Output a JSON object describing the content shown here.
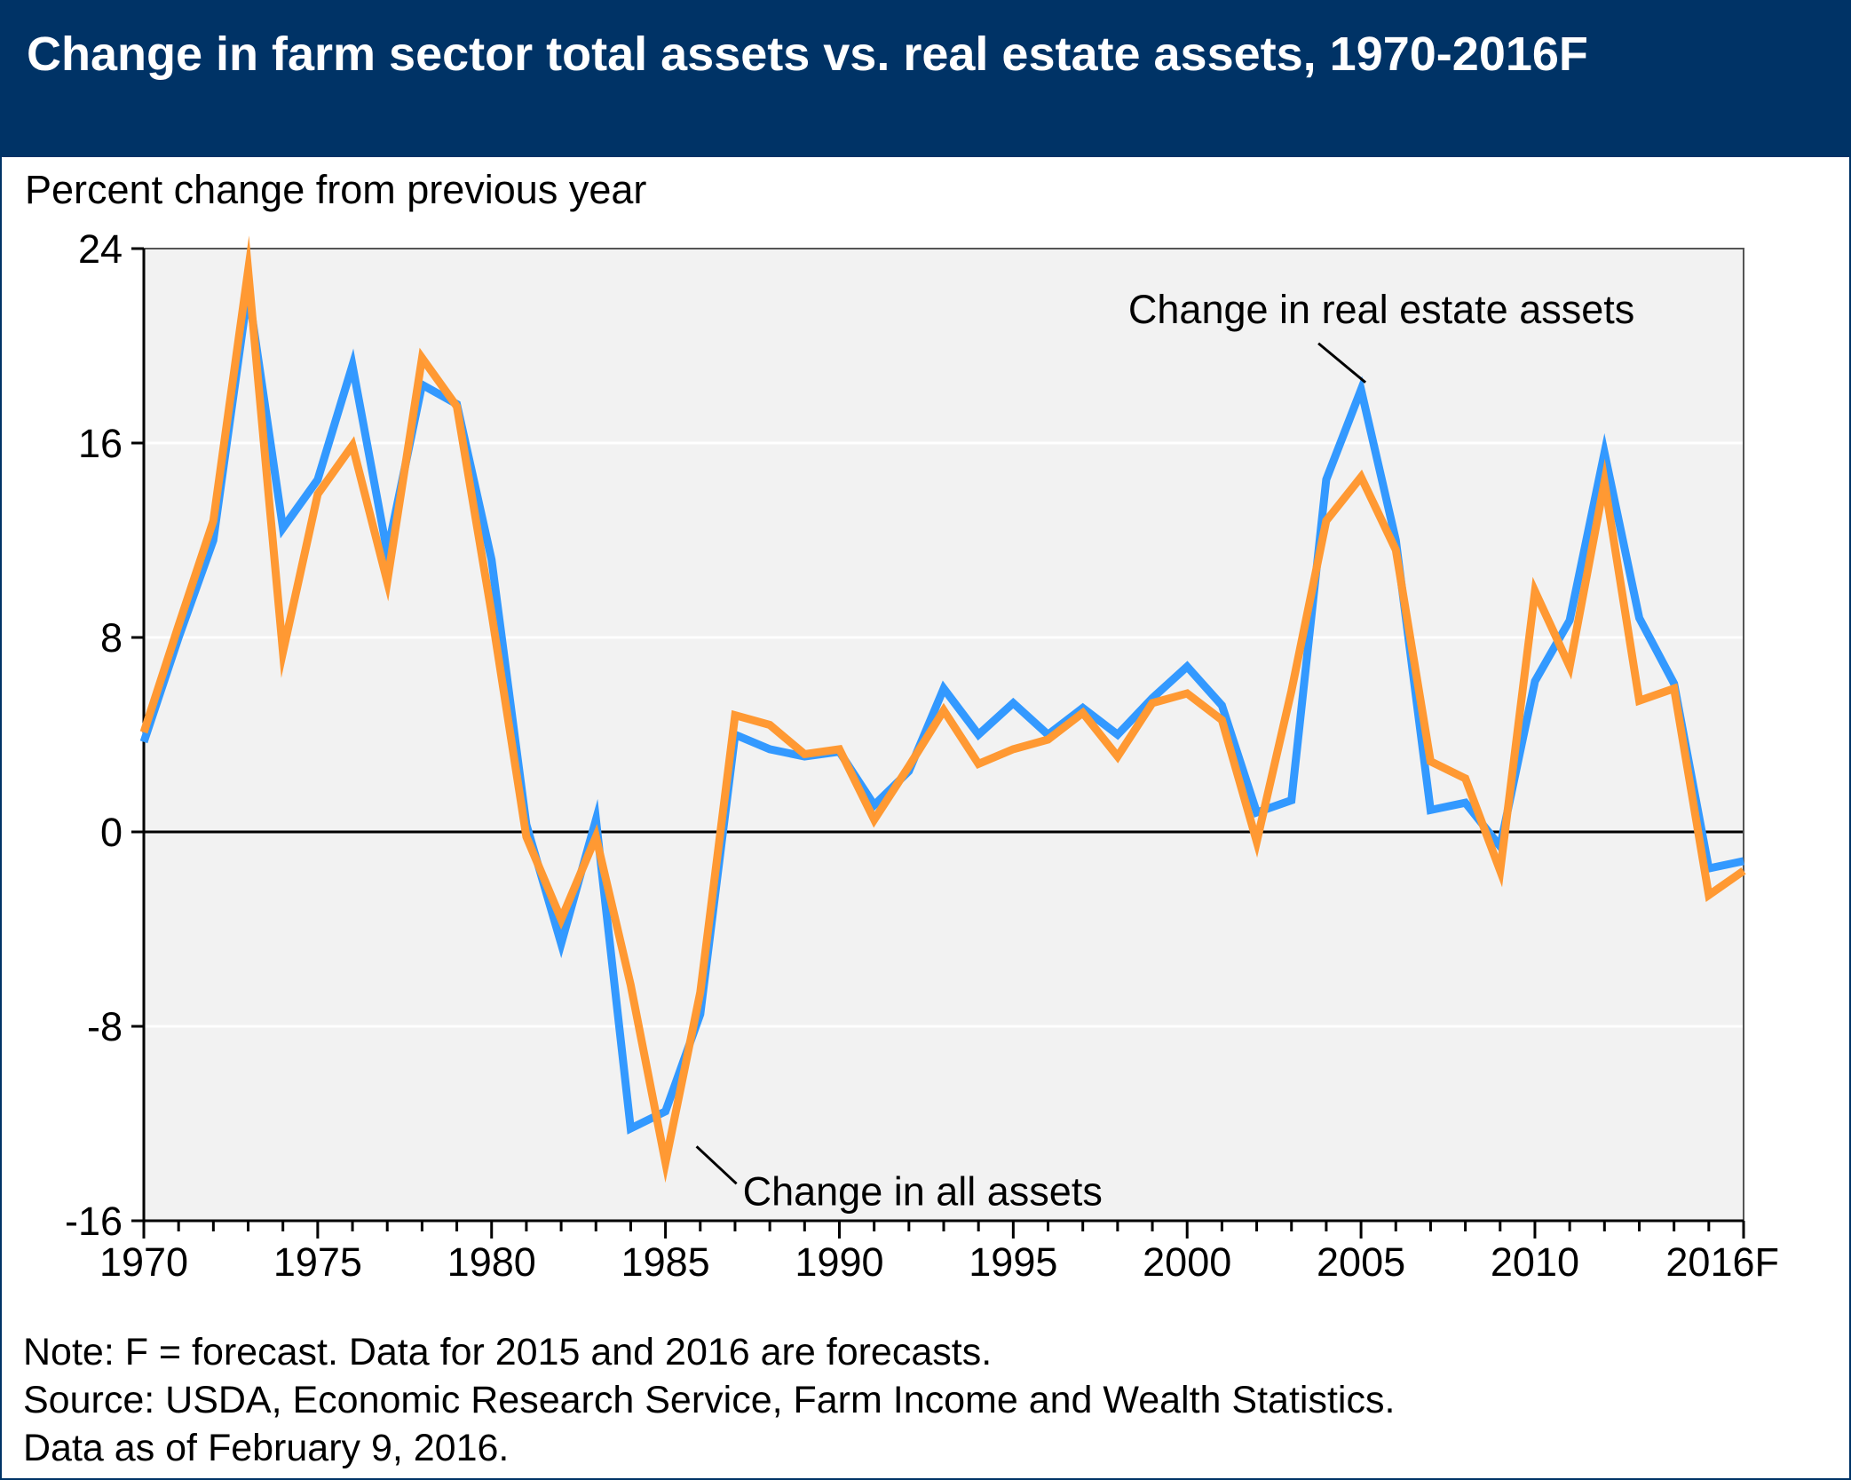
{
  "title": "Change in farm sector total assets vs. real estate assets, 1970-2016F",
  "notes": [
    "Note: F = forecast. Data for 2015 and 2016 are forecasts.",
    "Source: USDA, Economic Research Service, Farm Income and Wealth Statistics.",
    "Data as of February 9, 2016."
  ],
  "colors": {
    "header": "#003366",
    "real_estate": "#3399ff",
    "all_assets": "#ff9933",
    "plot_bg": "#f2f2f2"
  },
  "chart_data": {
    "type": "line",
    "ylabel": "Percent change from previous year",
    "ylim": [
      -16,
      24
    ],
    "yticks": [
      24,
      16,
      8,
      0,
      -8,
      -16
    ],
    "xlim": [
      1970,
      2016
    ],
    "xticks": [
      1970,
      1975,
      1980,
      1985,
      1990,
      1995,
      2000,
      2005,
      2010,
      2016
    ],
    "xtick_labels": [
      "1970",
      "1975",
      "1980",
      "1985",
      "1990",
      "1995",
      "2000",
      "2005",
      "2010",
      "2016F"
    ],
    "grid": "horizontal",
    "x": [
      1970,
      1971,
      1972,
      1973,
      1974,
      1975,
      1976,
      1977,
      1978,
      1979,
      1980,
      1981,
      1982,
      1983,
      1984,
      1985,
      1986,
      1987,
      1988,
      1989,
      1990,
      1991,
      1992,
      1993,
      1994,
      1995,
      1996,
      1997,
      1998,
      1999,
      2000,
      2001,
      2002,
      2003,
      2004,
      2005,
      2006,
      2007,
      2008,
      2009,
      2010,
      2011,
      2012,
      2013,
      2014,
      2015,
      2016
    ],
    "series": [
      {
        "name": "Change in real estate assets",
        "values": [
          3.7,
          8,
          12,
          22.3,
          12.5,
          14.5,
          19.2,
          11.5,
          18.4,
          17.6,
          11.2,
          0.3,
          -4.6,
          0.5,
          -12.2,
          -11.5,
          -7.5,
          4,
          3.4,
          3.1,
          3.3,
          1.1,
          2.5,
          5.9,
          4,
          5.3,
          4,
          5.1,
          4,
          5.5,
          6.8,
          5.2,
          0.8,
          1.3,
          14.5,
          18.2,
          12,
          0.9,
          1.2,
          -0.6,
          6.2,
          8.7,
          15.6,
          8.8,
          6.1,
          -1.5,
          -1.2
        ]
      },
      {
        "name": "Change in all assets",
        "values": [
          4.1,
          8.5,
          12.8,
          23.1,
          7.4,
          13.9,
          15.9,
          10.3,
          19.5,
          17.5,
          9,
          -0.2,
          -3.6,
          -0.2,
          -6.3,
          -13.6,
          -6.6,
          4.8,
          4.4,
          3.2,
          3.4,
          0.5,
          2.7,
          5,
          2.8,
          3.4,
          3.8,
          4.9,
          3.1,
          5.3,
          5.7,
          4.6,
          -0.4,
          5.8,
          12.8,
          14.6,
          11.6,
          2.9,
          2.2,
          -1.6,
          9.9,
          6.8,
          14.4,
          5.4,
          5.9,
          -2.6,
          -1.6
        ]
      }
    ],
    "annotations": [
      {
        "text": "Change in real estate assets",
        "target_x": 2005,
        "target_y": 18.2
      },
      {
        "text": "Change in all assets",
        "target_x": 1985,
        "target_y": -13.6
      }
    ]
  }
}
